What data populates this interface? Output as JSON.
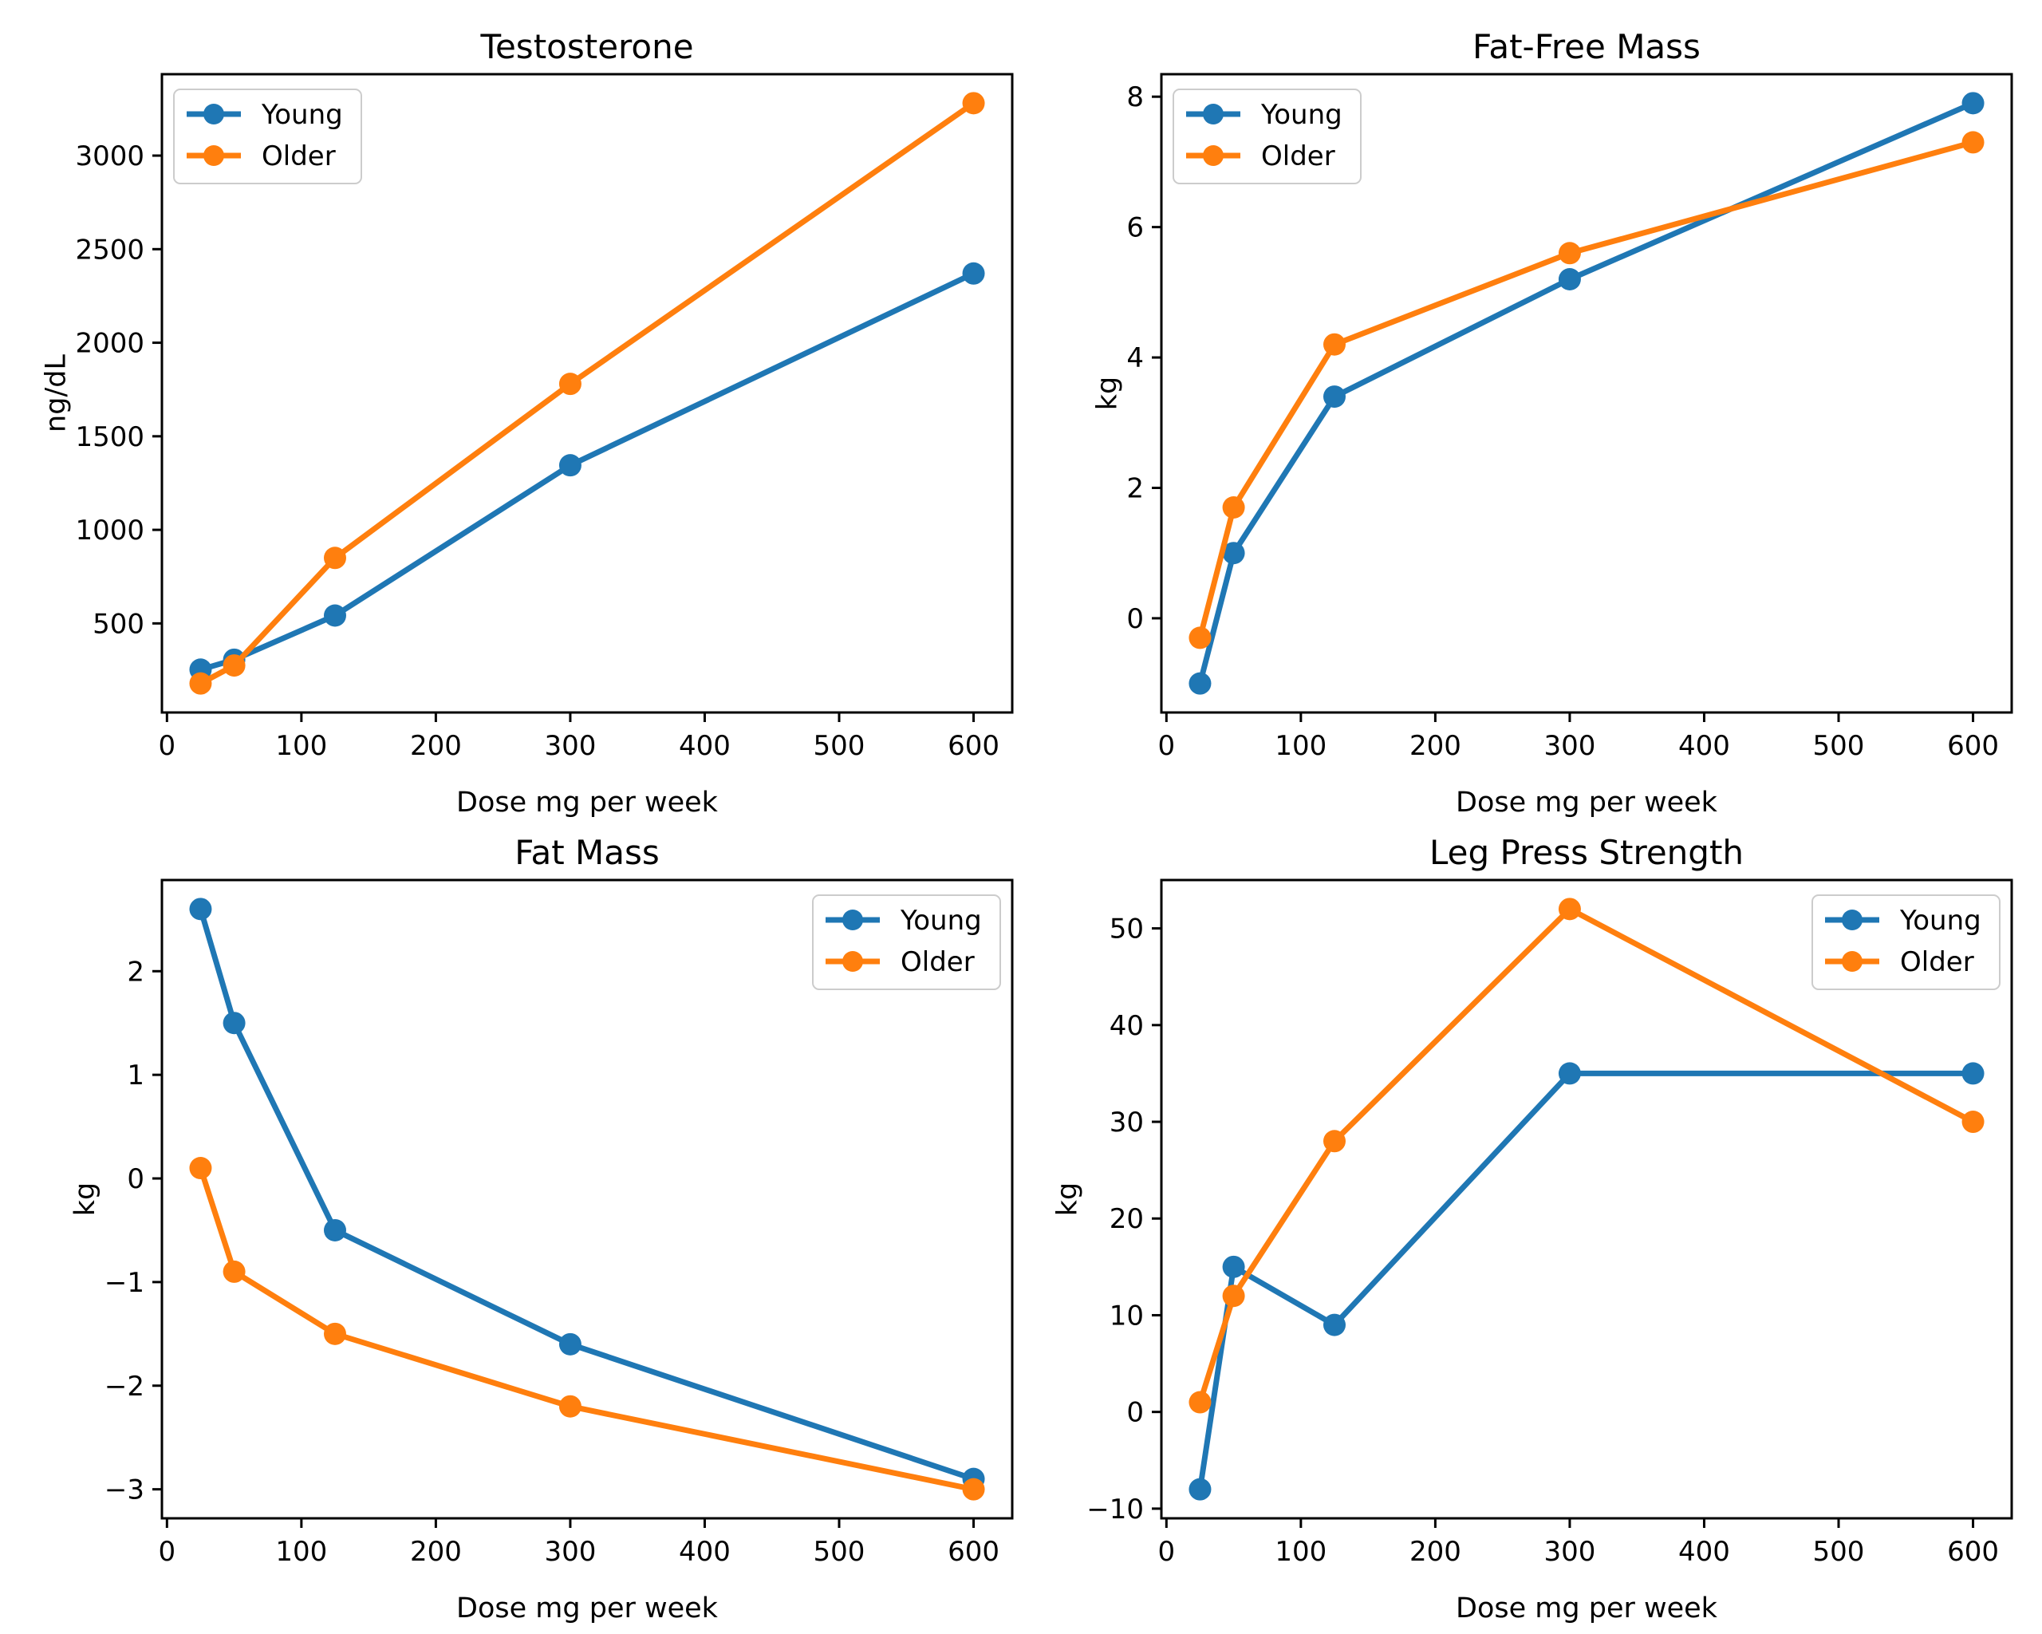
{
  "figure": {
    "background_color": "#ffffff",
    "text_color": "#000000",
    "spine_color": "#000000",
    "legend_border_color": "#cccccc",
    "legend_background": "#ffffff",
    "series_colors": {
      "young": "#1f77b4",
      "older": "#ff7f0e"
    },
    "legend_labels": [
      "Young",
      "Older"
    ],
    "shared_xlabel": "Dose mg per week"
  },
  "chart_data": [
    {
      "type": "line",
      "title": "Testosterone",
      "xlabel": "Dose mg per week",
      "ylabel": "ng/dL",
      "x": [
        25,
        50,
        125,
        300,
        600
      ],
      "series": [
        {
          "name": "Young",
          "color": "#1f77b4",
          "values": [
            253,
            306,
            542,
            1345,
            2370
          ]
        },
        {
          "name": "Older",
          "color": "#ff7f0e",
          "values": [
            179,
            275,
            850,
            1780,
            3280
          ]
        }
      ],
      "xticks": [
        0,
        100,
        200,
        300,
        400,
        500,
        600
      ],
      "yticks": [
        500,
        1000,
        1500,
        2000,
        2500,
        3000
      ],
      "xlim": [
        -3.75,
        628.75
      ],
      "ylim": [
        23.95,
        3435.05
      ],
      "legend_loc": "upper-left",
      "grid": false,
      "marker": "o"
    },
    {
      "type": "line",
      "title": "Fat-Free Mass",
      "xlabel": "Dose mg per week",
      "ylabel": "kg",
      "x": [
        25,
        50,
        125,
        300,
        600
      ],
      "series": [
        {
          "name": "Young",
          "color": "#1f77b4",
          "values": [
            -1.0,
            1.0,
            3.4,
            5.2,
            7.9
          ]
        },
        {
          "name": "Older",
          "color": "#ff7f0e",
          "values": [
            -0.3,
            1.7,
            4.2,
            5.6,
            7.3
          ]
        }
      ],
      "xticks": [
        0,
        100,
        200,
        300,
        400,
        500,
        600
      ],
      "yticks": [
        0,
        2,
        4,
        6,
        8
      ],
      "xlim": [
        -3.75,
        628.75
      ],
      "ylim": [
        -1.445,
        8.345
      ],
      "legend_loc": "upper-left",
      "grid": false,
      "marker": "o"
    },
    {
      "type": "line",
      "title": "Fat Mass",
      "xlabel": "Dose mg per week",
      "ylabel": "kg",
      "x": [
        25,
        50,
        125,
        300,
        600
      ],
      "series": [
        {
          "name": "Young",
          "color": "#1f77b4",
          "values": [
            2.6,
            1.5,
            -0.5,
            -1.6,
            -2.9
          ]
        },
        {
          "name": "Older",
          "color": "#ff7f0e",
          "values": [
            0.1,
            -0.9,
            -1.5,
            -2.2,
            -3.0
          ]
        }
      ],
      "xticks": [
        0,
        100,
        200,
        300,
        400,
        500,
        600
      ],
      "yticks": [
        -3,
        -2,
        -1,
        0,
        1,
        2
      ],
      "xlim": [
        -3.75,
        628.75
      ],
      "ylim": [
        -3.28,
        2.88
      ],
      "legend_loc": "upper-right",
      "grid": false,
      "marker": "o"
    },
    {
      "type": "line",
      "title": "Leg Press Strength",
      "xlabel": "Dose mg per week",
      "ylabel": "kg",
      "x": [
        25,
        50,
        125,
        300,
        600
      ],
      "series": [
        {
          "name": "Young",
          "color": "#1f77b4",
          "values": [
            -8,
            15,
            9,
            35,
            35
          ]
        },
        {
          "name": "Older",
          "color": "#ff7f0e",
          "values": [
            1,
            12,
            28,
            52,
            30
          ]
        }
      ],
      "xticks": [
        0,
        100,
        200,
        300,
        400,
        500,
        600
      ],
      "yticks": [
        -10,
        0,
        10,
        20,
        30,
        40,
        50
      ],
      "xlim": [
        -3.75,
        628.75
      ],
      "ylim": [
        -11,
        55
      ],
      "legend_loc": "upper-right",
      "grid": false,
      "marker": "o"
    }
  ]
}
